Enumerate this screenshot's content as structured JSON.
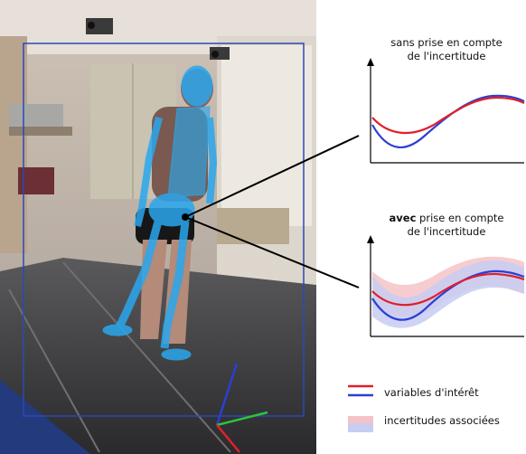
{
  "caption_top": {
    "line1": "sans prise en compte",
    "line2": "de l'incertitude"
  },
  "caption_bottom": {
    "bold": "avec",
    "rest": " prise en compte",
    "line2": "de l'incertitude"
  },
  "legend": {
    "curves_label": "variables d'intérêt",
    "band_label": "incertitudes associées"
  },
  "colors": {
    "curve_red": "#e0202a",
    "curve_blue": "#2a3fd6",
    "band_red": "#f4c3c8",
    "band_blue": "#c7cdf2",
    "skeleton": "#2aa7ee",
    "frame": "#2a49b8"
  }
}
